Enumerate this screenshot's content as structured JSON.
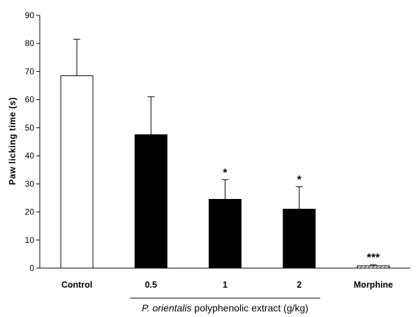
{
  "chart_data": {
    "type": "bar",
    "ylabel": "Paw licking time (s)",
    "ylim": [
      0,
      90
    ],
    "y_ticks": [
      "0",
      "10",
      "20",
      "30",
      "40",
      "50",
      "60",
      "70",
      "80",
      "90"
    ],
    "categories": [
      "Control",
      "0.5",
      "1",
      "2",
      "Morphine"
    ],
    "values": [
      68.5,
      47.5,
      24.5,
      21,
      0.8
    ],
    "errors": [
      13,
      13.5,
      7,
      8,
      0.4
    ],
    "significance": [
      "",
      "",
      "*",
      "*",
      "***"
    ],
    "bar_colors": [
      "#ffffff",
      "#000000",
      "#000000",
      "#000000",
      "hatched"
    ],
    "group_label": {
      "species": "P. orientalis",
      "rest": " polyphenolic extract (g/kg)",
      "categories": [
        "0.5",
        "1",
        "2"
      ]
    },
    "grid": false,
    "legend": "none"
  }
}
